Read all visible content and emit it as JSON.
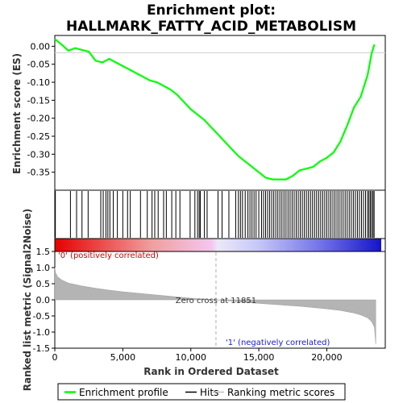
{
  "chart_data": {
    "type": "line",
    "title_line1": "Enrichment plot:",
    "title_line2": "HALLMARK_FATTY_ACID_METABOLISM",
    "es_panel": {
      "ylabel": "Enrichment score (ES)",
      "ylim": [
        -0.4,
        0.03
      ],
      "yticks": [
        0.0,
        -0.05,
        -0.1,
        -0.15,
        -0.2,
        -0.25,
        -0.3,
        -0.35
      ],
      "ytick_labels": [
        "0.00",
        "-0.05",
        "-0.10",
        "-0.15",
        "-0.20",
        "-0.25",
        "-0.30",
        "-0.35"
      ],
      "series_color": "#00ff00",
      "x": [
        0,
        500,
        1000,
        1500,
        2000,
        2500,
        3000,
        3500,
        4000,
        4500,
        5000,
        5500,
        6000,
        6500,
        7000,
        7500,
        8000,
        8500,
        9000,
        9500,
        10000,
        10500,
        11000,
        11500,
        12000,
        12500,
        13000,
        13500,
        14000,
        14500,
        15000,
        15500,
        16000,
        16500,
        17000,
        17500,
        18000,
        18500,
        19000,
        19500,
        20000,
        20500,
        21000,
        21500,
        22000,
        22500,
        23000,
        23300,
        23500
      ],
      "y": [
        0.02,
        0.005,
        -0.012,
        -0.005,
        -0.01,
        -0.015,
        -0.04,
        -0.045,
        -0.035,
        -0.045,
        -0.055,
        -0.065,
        -0.075,
        -0.085,
        -0.095,
        -0.1,
        -0.11,
        -0.12,
        -0.135,
        -0.155,
        -0.175,
        -0.19,
        -0.205,
        -0.225,
        -0.245,
        -0.265,
        -0.285,
        -0.305,
        -0.32,
        -0.335,
        -0.35,
        -0.365,
        -0.37,
        -0.37,
        -0.37,
        -0.36,
        -0.345,
        -0.34,
        -0.335,
        -0.32,
        -0.31,
        -0.295,
        -0.265,
        -0.22,
        -0.17,
        -0.14,
        -0.08,
        -0.02,
        0.005
      ]
    },
    "hits_panel": {
      "hits_left": [
        40,
        1150,
        1600,
        2000,
        2450,
        3380,
        3560,
        3760,
        3900,
        4050,
        4300,
        4600,
        5000,
        5350,
        5550,
        6300,
        6800,
        7150,
        7350,
        7600,
        8000,
        8200,
        8600,
        8900,
        9200,
        9950,
        10300,
        10500,
        10620,
        10700,
        11000,
        11200
      ],
      "hits_right": [
        12000,
        12300,
        12800,
        13300,
        13500,
        13650,
        13800,
        14000,
        14200,
        14350,
        14500,
        14650,
        14800,
        15000,
        15200,
        15350,
        15500,
        15650,
        15800,
        15950,
        16100,
        16250,
        16400,
        16550,
        16700,
        16850,
        17000,
        17150,
        17300,
        17450,
        17600,
        17750,
        17900,
        18050,
        18200,
        18350,
        18500,
        18650,
        18800,
        18950,
        19100,
        19250,
        19400,
        19550,
        19700,
        19850,
        20000,
        20150,
        20300,
        20450,
        20600,
        20750,
        20900,
        21050,
        21200,
        21350,
        21500,
        21650,
        21800,
        21950,
        22100,
        22250,
        22400,
        22550,
        22700,
        22850,
        23000,
        23100,
        23200,
        23300,
        23400,
        23480
      ]
    },
    "metric_panel": {
      "ylabel": "Ranked list metric (Signal2Noise)",
      "ylim": [
        -1.5,
        1.5
      ],
      "yticks": [
        1.5,
        1.0,
        0.5,
        0.0,
        -0.5,
        -1.0,
        -1.5
      ],
      "ytick_labels": [
        "1.5",
        "1.0",
        "0.5",
        "0.0",
        "-0.5",
        "-1.0",
        "-1.5"
      ],
      "x": [
        0,
        50,
        200,
        500,
        1000,
        2000,
        3000,
        4000,
        5000,
        6000,
        7000,
        8000,
        9000,
        10000,
        11000,
        11851,
        13000,
        14000,
        15000,
        16000,
        17000,
        18000,
        19000,
        20000,
        21000,
        22000,
        22500,
        23000,
        23300,
        23500,
        23600
      ],
      "y": [
        1.0,
        0.85,
        0.72,
        0.62,
        0.52,
        0.43,
        0.36,
        0.3,
        0.25,
        0.21,
        0.17,
        0.13,
        0.09,
        0.05,
        0.02,
        0.0,
        -0.04,
        -0.08,
        -0.11,
        -0.14,
        -0.17,
        -0.2,
        -0.24,
        -0.28,
        -0.33,
        -0.41,
        -0.47,
        -0.56,
        -0.68,
        -0.85,
        -1.38
      ],
      "zero_cross_label": "Zero cross at 11851",
      "zero_cross": 11851,
      "label_pos": "'0' (positively correlated)",
      "label_neg": "'1' (negatively correlated)"
    },
    "xaxis": {
      "xlabel": "Rank in Ordered Dataset",
      "xlim": [
        0,
        24300
      ],
      "xticks": [
        0,
        5000,
        10000,
        15000,
        20000
      ],
      "xtick_labels": [
        "0",
        "5,000",
        "10,000",
        "15,000",
        "20,000"
      ]
    },
    "legend": {
      "items": [
        "Enrichment profile",
        "Hits",
        "Ranking metric scores"
      ],
      "colors": [
        "#00ff00",
        "#000000",
        "#c0c0c0"
      ]
    }
  }
}
